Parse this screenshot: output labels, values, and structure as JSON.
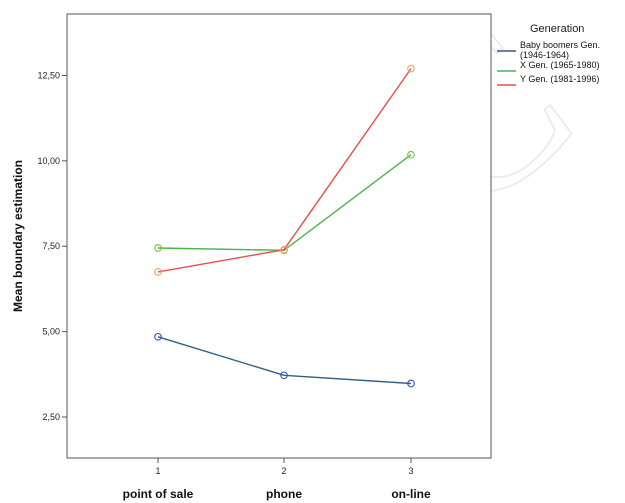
{
  "chart_data": {
    "type": "line",
    "title": "",
    "xlabel": "",
    "ylabel": "Mean boundary estimation",
    "x": [
      1,
      2,
      3
    ],
    "x_tick_labels": [
      "1",
      "2",
      "3"
    ],
    "categories": [
      "point of sale",
      "phone",
      "on-line"
    ],
    "ylim": [
      1.3,
      14.3
    ],
    "y_ticks": [
      2.5,
      5.0,
      7.5,
      10.0,
      12.5
    ],
    "y_tick_labels": [
      "2,50",
      "5,00",
      "7,50",
      "10,00",
      "12,50"
    ],
    "legend_title": "Generation",
    "legend_position": "top-right, outside plot",
    "grid": false,
    "markers": "open circles",
    "series": [
      {
        "name": "Baby boomers Gen. (1946-1964)",
        "color": "#2f5f8a",
        "marker_color": "#3a4fc0",
        "values": [
          4.85,
          3.72,
          3.48
        ]
      },
      {
        "name": "X Gen. (1965-1980)",
        "color": "#4cb34c",
        "marker_color": "#7ac043",
        "values": [
          7.45,
          7.38,
          10.18
        ]
      },
      {
        "name": "Y Gen. (1981-1996)",
        "color": "#e5504a",
        "marker_color": "#f0a36a",
        "values": [
          6.75,
          7.4,
          12.7
        ]
      }
    ]
  },
  "legend_lines": [
    [
      "Baby boomers Gen.",
      "(1946-1964)"
    ],
    [
      "X Gen. (1965-1980)"
    ],
    [
      "Y Gen. (1981-1996)"
    ]
  ],
  "watermark": "UMC"
}
